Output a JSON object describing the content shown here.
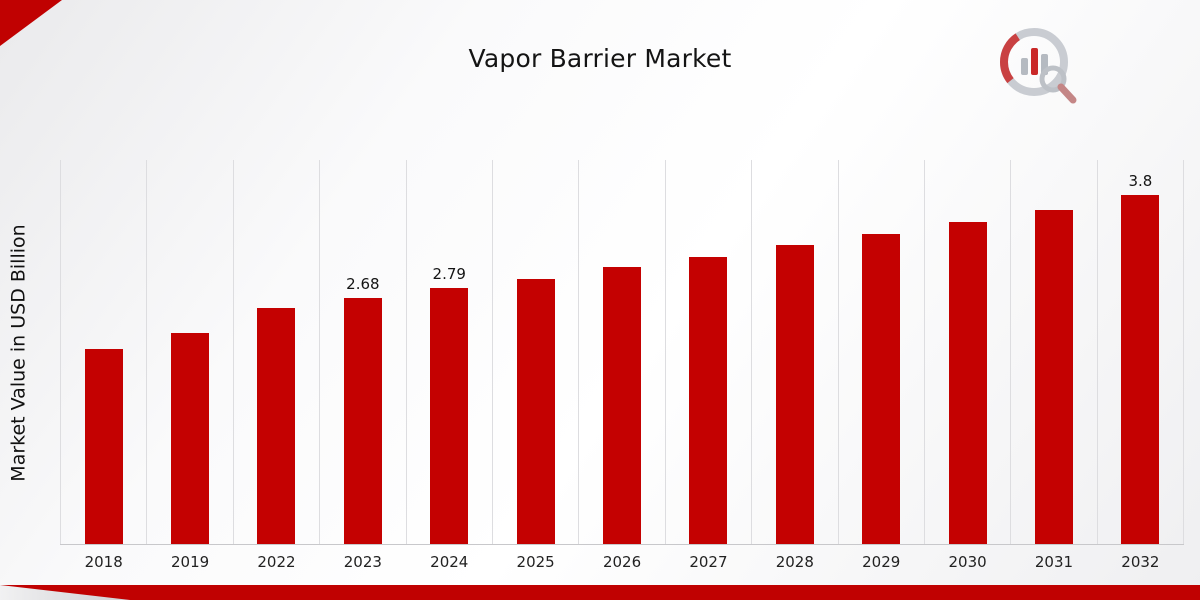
{
  "chart_data": {
    "type": "bar",
    "title": "Vapor Barrier Market",
    "xlabel": "",
    "ylabel": "Market Value in USD Billion",
    "categories": [
      "2018",
      "2019",
      "2022",
      "2023",
      "2024",
      "2025",
      "2026",
      "2027",
      "2028",
      "2029",
      "2030",
      "2031",
      "2032"
    ],
    "values": [
      2.12,
      2.3,
      2.57,
      2.68,
      2.79,
      2.89,
      3.01,
      3.12,
      3.25,
      3.38,
      3.51,
      3.64,
      3.8
    ],
    "data_labels": {
      "2023": "2.68",
      "2024": "2.79",
      "2032": "3.8"
    },
    "ylim": [
      0,
      4.18
    ],
    "grid": "vertical-column-dividers",
    "legend": "none",
    "bar_color": "#c40101"
  },
  "decorations": {
    "corner_accent_color": "#c00101",
    "bottom_band_color": "#c00101",
    "logo": "market-research-chart-magnifier-logo"
  }
}
